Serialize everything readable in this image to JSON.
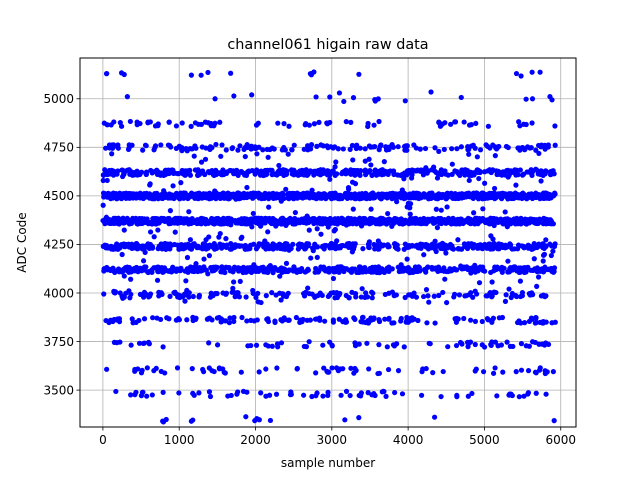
{
  "chart_data": {
    "type": "scatter",
    "title": "channel061 higain raw data",
    "xlabel": "sample number",
    "ylabel": "ADC Code",
    "xlim": [
      -300,
      6200
    ],
    "ylim": [
      3310,
      5210
    ],
    "xticks": [
      0,
      1000,
      2000,
      3000,
      4000,
      5000,
      6000
    ],
    "yticks": [
      3500,
      3750,
      4000,
      4250,
      4500,
      4750,
      5000
    ],
    "grid": true,
    "marker_color": "#0000ff",
    "x_range_of_samples": [
      0,
      5930
    ],
    "adc_levels": [
      {
        "value": 3350,
        "density": "very sparse"
      },
      {
        "value": 3480,
        "density": "sparse"
      },
      {
        "value": 3600,
        "density": "sparse"
      },
      {
        "value": 3735,
        "density": "sparse"
      },
      {
        "value": 3860,
        "density": "moderate"
      },
      {
        "value": 3990,
        "density": "moderate"
      },
      {
        "value": 4120,
        "density": "dense"
      },
      {
        "value": 4240,
        "density": "dense"
      },
      {
        "value": 4370,
        "density": "very dense"
      },
      {
        "value": 4500,
        "density": "very dense"
      },
      {
        "value": 4620,
        "density": "dense"
      },
      {
        "value": 4750,
        "density": "moderate"
      },
      {
        "value": 4870,
        "density": "sparse"
      },
      {
        "value": 5000,
        "density": "very sparse"
      },
      {
        "value": 5130,
        "density": "very sparse"
      }
    ],
    "notable_points": [
      {
        "x": 50,
        "y": 5130
      },
      {
        "x": 280,
        "y": 5125
      },
      {
        "x": 5420,
        "y": 5130
      },
      {
        "x": 4300,
        "y": 5035
      },
      {
        "x": 3100,
        "y": 5030
      },
      {
        "x": 1950,
        "y": 5020
      },
      {
        "x": 1470,
        "y": 5000
      },
      {
        "x": 5630,
        "y": 5000
      }
    ]
  }
}
